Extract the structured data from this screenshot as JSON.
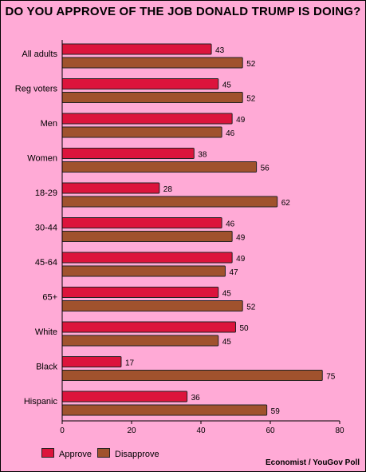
{
  "title": "DO YOU APPROVE OF THE JOB DONALD TRUMP IS DOING?",
  "source": "Economist / YouGov Poll",
  "colors": {
    "approve": "#dc143c",
    "disapprove": "#a0522d",
    "background": "#ffaad6"
  },
  "chart_data": {
    "type": "bar",
    "orientation": "horizontal",
    "categories": [
      "All adults",
      "Reg voters",
      "Men",
      "Women",
      "18-29",
      "30-44",
      "45-64",
      "65+",
      "White",
      "Black",
      "Hispanic"
    ],
    "series": [
      {
        "name": "Approve",
        "values": [
          43,
          45,
          49,
          38,
          28,
          46,
          49,
          45,
          50,
          17,
          36
        ]
      },
      {
        "name": "Disapprove",
        "values": [
          52,
          52,
          46,
          56,
          62,
          49,
          47,
          52,
          45,
          75,
          59
        ]
      }
    ],
    "xlim": [
      0,
      80
    ],
    "xticks": [
      0,
      20,
      40,
      60,
      80
    ],
    "legend": "bottom-left",
    "grid": false
  }
}
